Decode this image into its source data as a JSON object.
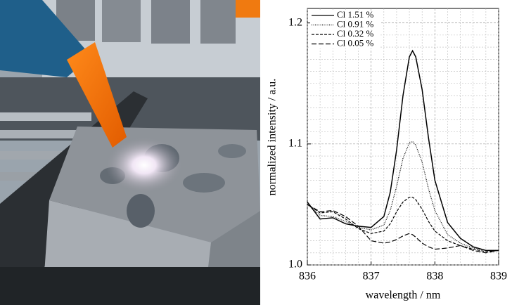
{
  "chart_data": {
    "type": "line",
    "x_label": "wavelength / nm",
    "y_label": "normalized intensity / a.u.",
    "x": [
      836,
      836.2,
      836.4,
      836.6,
      836.8,
      837.0,
      837.2,
      837.3,
      837.4,
      837.5,
      837.6,
      837.65,
      837.7,
      837.8,
      837.9,
      838.0,
      838.2,
      838.4,
      838.6,
      838.8,
      839.0
    ],
    "series": [
      {
        "name": "Cl 1.51 %",
        "color": "#000000",
        "dash": "solid",
        "values": [
          1.052,
          1.038,
          1.039,
          1.034,
          1.032,
          1.031,
          1.04,
          1.06,
          1.095,
          1.14,
          1.172,
          1.177,
          1.172,
          1.145,
          1.105,
          1.07,
          1.035,
          1.022,
          1.015,
          1.012,
          1.012
        ]
      },
      {
        "name": "Cl 0.91 %",
        "color": "#000000",
        "dash": "dotted",
        "values": [
          1.05,
          1.041,
          1.04,
          1.036,
          1.031,
          1.029,
          1.033,
          1.045,
          1.065,
          1.088,
          1.101,
          1.102,
          1.099,
          1.085,
          1.063,
          1.045,
          1.025,
          1.018,
          1.014,
          1.012,
          1.012
        ]
      },
      {
        "name": "Cl 0.32 %",
        "color": "#000000",
        "dash": "dashed",
        "values": [
          1.05,
          1.043,
          1.044,
          1.038,
          1.03,
          1.026,
          1.028,
          1.034,
          1.044,
          1.052,
          1.056,
          1.056,
          1.054,
          1.046,
          1.036,
          1.028,
          1.02,
          1.016,
          1.013,
          1.011,
          1.012
        ]
      },
      {
        "name": "Cl 0.05 %",
        "color": "#000000",
        "dash": "longdash",
        "values": [
          1.05,
          1.044,
          1.045,
          1.04,
          1.032,
          1.02,
          1.018,
          1.019,
          1.021,
          1.024,
          1.026,
          1.025,
          1.023,
          1.018,
          1.015,
          1.013,
          1.014,
          1.016,
          1.012,
          1.01,
          1.012
        ]
      }
    ],
    "xlim": [
      836,
      839
    ],
    "xticks": [
      836,
      837,
      838,
      839
    ],
    "ylim": [
      1.0,
      1.212
    ],
    "yticks": [
      {
        "value": 1.0,
        "label": "1.0"
      },
      1.1,
      1.2
    ],
    "grid": true,
    "legend": "top-left"
  }
}
